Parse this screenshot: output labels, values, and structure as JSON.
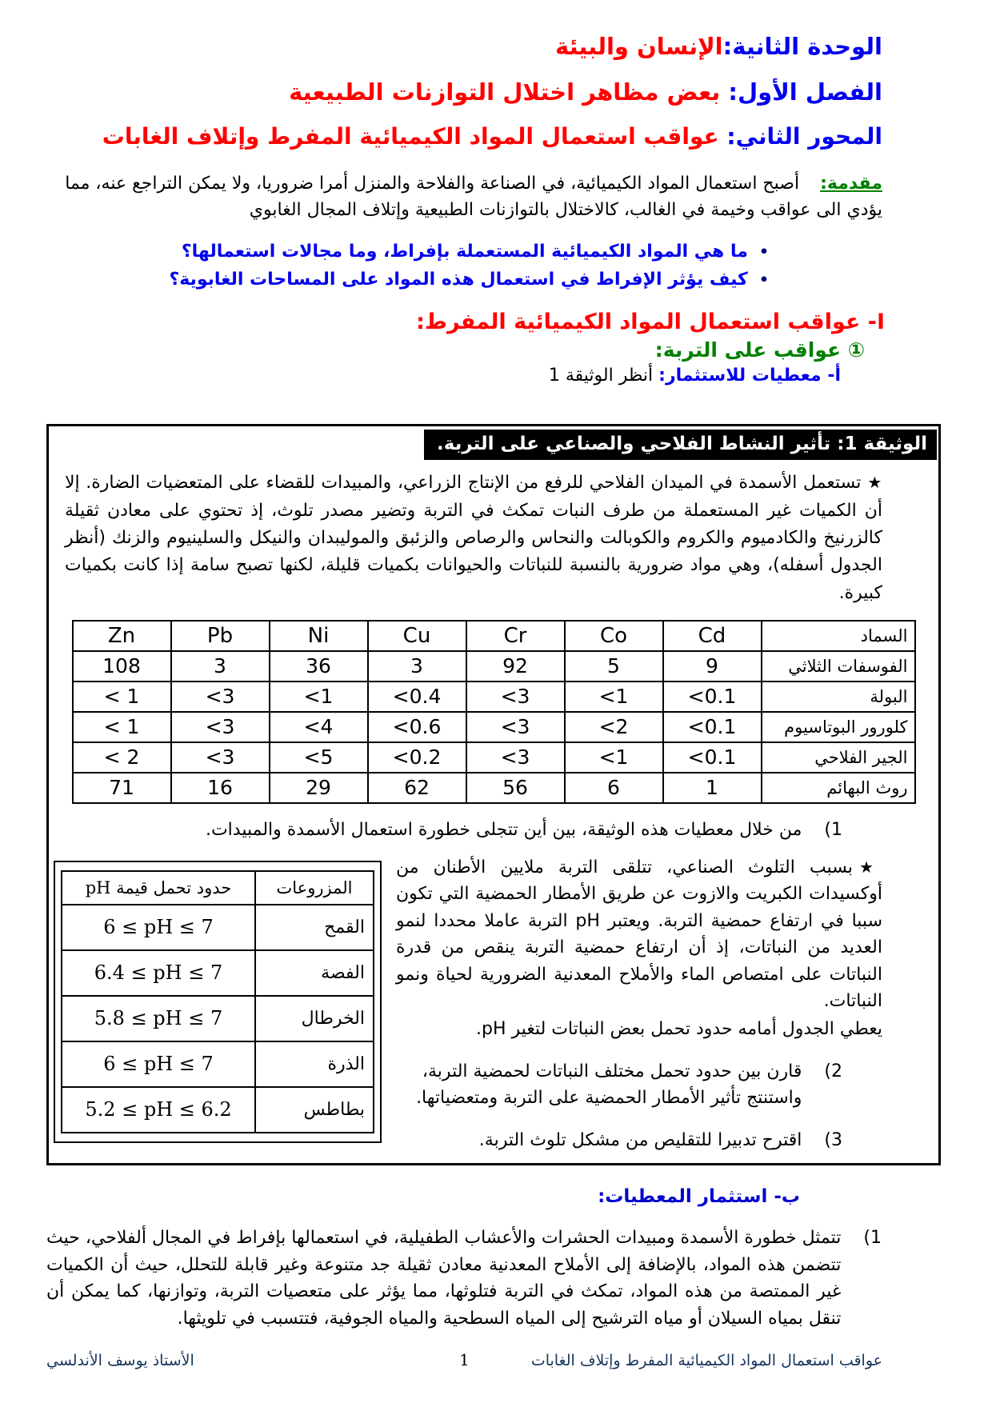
{
  "header": {
    "unit_label": "الوحدة الثانية:",
    "unit_title": "الإنسان والبيئة",
    "chapter_label": "الفصل الأول:",
    "chapter_title": " بعض مظاهر اختلال التوازنات الطبيعية",
    "axis_label": "المحور الثاني:",
    "axis_title": " عواقب استعمال المواد الكيميائية المفرط وإتلاف الغابات"
  },
  "intro": {
    "label": "مقدمة:",
    "text": "أصبح استعمال المواد الكيميائية، في الصناعة والفلاحة والمنزل أمرا ضروريا، ولا يمكن التراجع عنه، مما يؤدي الى عواقب وخيمة في الغالب، كالاختلال بالتوازنات الطبيعية وإتلاف المجال الغابوي"
  },
  "lead_questions": {
    "bullet": "•",
    "q1": "ما هي المواد الكيميائية المستعملة بإفراط، وما مجالات استعمالها؟",
    "q2": "كيف يؤثر الإفراط في استعمال هذه المواد على المساحات الغابوية؟"
  },
  "section1": {
    "heading": "I- عواقب استعمال المواد الكيميائية المفرط:",
    "sub_green": "① عواقب على التربة:",
    "sub_a_label": "أ- معطيات للاستثمار:",
    "sub_a_text": " أنظر الوثيقة 1"
  },
  "doc1": {
    "title": "الوثيقة 1: تأثير النشاط الفلاحي والصناعي على التربة.",
    "star": "★",
    "para1": "تستعمل الأسمدة في الميدان الفلاحي للرفع من الإنتاج الزراعي، والمبيدات للقضاء على المتعضيات الضارة. إلا أن الكميات غير المستعملة من طرف النبات تمكث في التربة وتضير مصدر تلوث، إذ تحتوي على معادن ثقيلة كالزرنيخ والكادميوم والكروم والكوبالت والنحاس والرصاص والزئبق والموليبدان والنيكل والسلينيوم والزنك (أنظر الجدول أسفله)، وهي مواد ضرورية بالنسبة للنباتات والحيوانات بكميات قليلة، لكنها تصبح سامة إذا كانت بكميات كبيرة.",
    "metals": {
      "header": [
        "السماد",
        "Cd",
        "Co",
        "Cr",
        "Cu",
        "Ni",
        "Pb",
        "Zn"
      ],
      "rows": [
        [
          "الفوسفات الثلاثي",
          "9",
          "5",
          "92",
          "3",
          "36",
          "3",
          "108"
        ],
        [
          "البولة",
          "<0.1",
          "<1",
          "<3",
          "<0.4",
          "<1",
          "<3",
          "< 1"
        ],
        [
          "كلورور البوتاسيوم",
          "<0.1",
          "<2",
          "<3",
          "<0.6",
          "<4",
          "<3",
          "< 1"
        ],
        [
          "الجير الفلاحي",
          "<0.1",
          "<1",
          "<3",
          "<0.2",
          "<5",
          "<3",
          "< 2"
        ],
        [
          "روث البهائم",
          "1",
          "6",
          "56",
          "62",
          "29",
          "16",
          "71"
        ]
      ]
    },
    "q1_num": "1)",
    "q1": "من خلال معطيات هذه الوثيقة، بين أين تتجلى خطورة استعمال الأسمدة والمبيدات.",
    "para2": "بسبب التلوث الصناعي، تتلقى التربة ملايين الأطنان من أوكسيدات الكبريت والازوت عن طريق الأمطار الحمضية التي تكون سببا في ارتفاع حمضية التربة. ويعتبر pH التربة عاملا محددا لنمو العديد من النباتات، إذ أن ارتفاع حمضية التربة ينقص من قدرة النباتات على امتصاص الماء والأملاح المعدنية الضرورية لحياة ونمو النباتات.",
    "para2b": "يعطي الجدول أمامه حدود تحمل بعض النباتات لتغير pH.",
    "ph": {
      "header": [
        "المزروعات",
        "حدود تحمل قيمة pH"
      ],
      "rows": [
        [
          "القمح",
          "6 ≤ pH ≤ 7"
        ],
        [
          "الفصة",
          "6.4 ≤ pH ≤ 7"
        ],
        [
          "الخرطال",
          "5.8 ≤ pH ≤ 7"
        ],
        [
          "الذرة",
          "6 ≤ pH ≤ 7"
        ],
        [
          "بطاطس",
          "5.2 ≤ pH ≤ 6.2"
        ]
      ]
    },
    "q2_num": "2)",
    "q2": "قارن بين حدود تحمل مختلف النباتات لحمضية التربة، واستنتج تأثير الأمطار الحمضية على التربة ومتعضياتها.",
    "q3_num": "3)",
    "q3": "اقترح تدبيرا للتقليص من مشكل تلوث التربة."
  },
  "section1b": {
    "heading": "ب- استثمار المعطيات:",
    "p1_num": "1)",
    "p1": "تتمثل خطورة الأسمدة ومبيدات الحشرات والأعشاب الطفيلية، في استعمالها بإفراط في المجال ألفلاحي، حيث تتضمن هذه المواد، بالإضافة إلى الأملاح المعدنية معادن ثقيلة جد متنوعة وغير قابلة للتحلل، حيث أن الكميات غير الممتصة من هذه المواد، تمكث في التربة فتلوثها، مما يؤثر على متعصيات التربة، وتوازنها، كما يمكن أن تنقل بمياه السيلان أو مياه الترشيح إلى المياه السطحية والمياه الجوفية، فتتسبب في تلويثها."
  },
  "footer": {
    "doc_title": "عواقب استعمال المواد الكيميائية المفرط وإتلاف الغابات",
    "page_number": "1",
    "author": "الأستاذ يوسف الأندلسي"
  },
  "colors": {
    "heading_blue": "#0000ee",
    "heading_red": "#fe0000",
    "heading_green": "#008000",
    "footer_navy": "#17365d"
  }
}
